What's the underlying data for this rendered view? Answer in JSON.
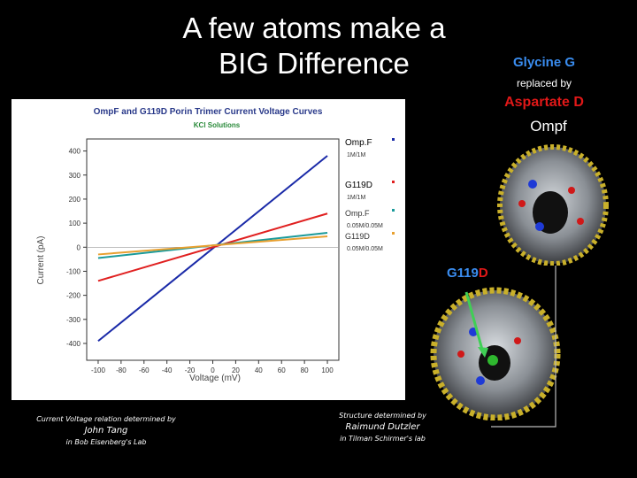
{
  "slide": {
    "title_line1": "A few atoms make a",
    "title_line2": "BIG Difference"
  },
  "annotations": {
    "glycine": "Glycine G",
    "replaced_by": "replaced by",
    "aspartate": "Aspartate D",
    "ompf": "Ompf",
    "g119d_prefix": "G119",
    "g119d_suffix": "D"
  },
  "credits": {
    "left_line1": "Current Voltage relation determined by",
    "left_line2": "John Tang",
    "left_line3": "in Bob Eisenberg's Lab",
    "right_line1": "Structure determined by",
    "right_line2": "Raimund Dutzler",
    "right_line3": "in Tilman Schirmer's lab"
  },
  "chart_data": {
    "type": "line",
    "title": "OmpF and G119D Porin Trimer Current Voltage Curves",
    "subtitle": "KCl Solutions",
    "xlabel": "Voltage (mV)",
    "ylabel": "Current (pA)",
    "xlim": [
      -110,
      110
    ],
    "ylim": [
      -470,
      450
    ],
    "x_ticks": [
      -100,
      -80,
      -60,
      -40,
      -20,
      0,
      20,
      40,
      60,
      80,
      100
    ],
    "y_ticks": [
      -400,
      -300,
      -200,
      -100,
      0,
      100,
      200,
      300,
      400
    ],
    "legend_position": "right",
    "series": [
      {
        "name": "Omp.F",
        "label2": "1M/1M",
        "color": "#1a2aa8",
        "x": [
          -100,
          100
        ],
        "y": [
          -390,
          380
        ]
      },
      {
        "name": "G119D",
        "label2": "1M/1M",
        "color": "#e02020",
        "x": [
          -100,
          100
        ],
        "y": [
          -140,
          140
        ]
      },
      {
        "name": "Omp.F",
        "label2": "0.05M/0.05M",
        "color": "#1a9a9a",
        "x": [
          -100,
          100
        ],
        "y": [
          -45,
          60
        ]
      },
      {
        "name": "G119D",
        "label2": "0.05M/0.05M",
        "color": "#e8a030",
        "x": [
          -100,
          100
        ],
        "y": [
          -30,
          45
        ]
      }
    ]
  }
}
